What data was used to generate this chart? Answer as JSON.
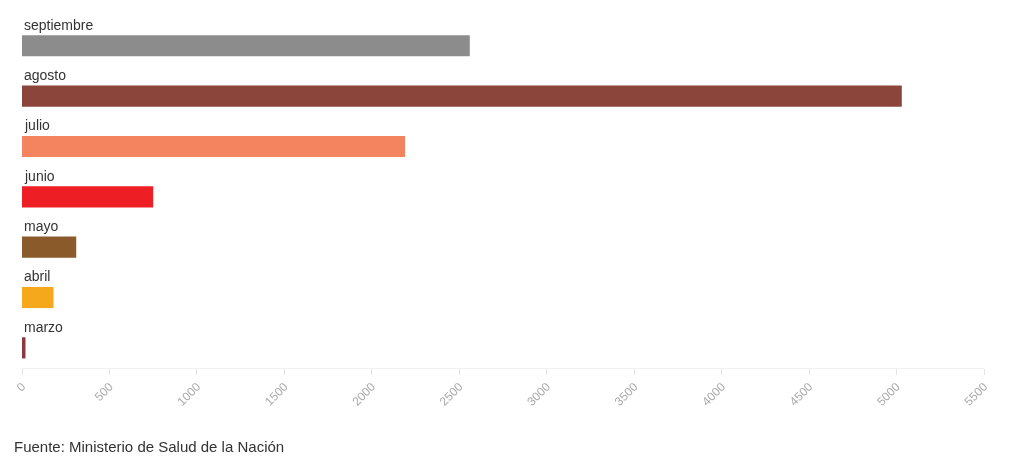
{
  "chart_data": {
    "type": "bar",
    "orientation": "horizontal",
    "categories": [
      "septiembre",
      "agosto",
      "julio",
      "junio",
      "mayo",
      "abril",
      "marzo"
    ],
    "values": [
      2560,
      5030,
      2190,
      750,
      310,
      180,
      20
    ],
    "colors": [
      "#8c8c8c",
      "#8b453a",
      "#f4845f",
      "#ee1f24",
      "#8b5a2b",
      "#f5a81c",
      "#8b3a44"
    ],
    "xlim": [
      0,
      5500
    ],
    "xticks": [
      0,
      500,
      1000,
      1500,
      2000,
      2500,
      3000,
      3500,
      4000,
      4500,
      5000,
      5500
    ],
    "grid": false,
    "legend": false,
    "annotations": [
      "Fuente: Ministerio de Salud de la Nación"
    ]
  }
}
